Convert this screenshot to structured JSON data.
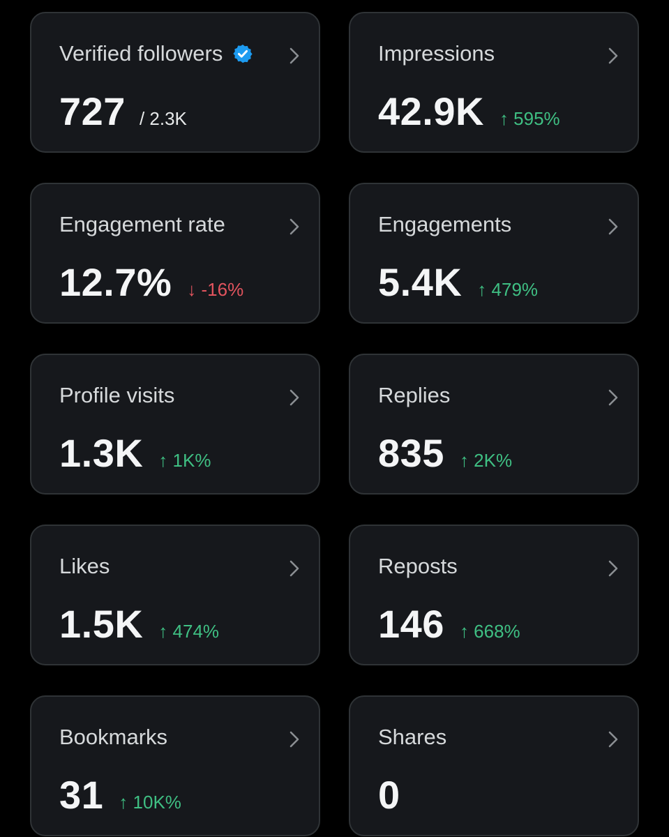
{
  "colors": {
    "background": "#000000",
    "card": "#16181c",
    "card_border": "#2f3336",
    "positive": "#3fbf83",
    "negative": "#e2545e",
    "verified": "#1d9bf0"
  },
  "cards": [
    {
      "title": "Verified followers",
      "value": "727",
      "total": "/ 2.3K",
      "icon": "verified-badge-icon"
    },
    {
      "title": "Impressions",
      "value": "42.9K",
      "change": "↑ 595%",
      "trend": "up"
    },
    {
      "title": "Engagement rate",
      "value": "12.7%",
      "change": "↓ -16%",
      "trend": "down"
    },
    {
      "title": "Engagements",
      "value": "5.4K",
      "change": "↑ 479%",
      "trend": "up"
    },
    {
      "title": "Profile visits",
      "value": "1.3K",
      "change": "↑ 1K%",
      "trend": "up"
    },
    {
      "title": "Replies",
      "value": "835",
      "change": "↑ 2K%",
      "trend": "up"
    },
    {
      "title": "Likes",
      "value": "1.5K",
      "change": "↑ 474%",
      "trend": "up"
    },
    {
      "title": "Reposts",
      "value": "146",
      "change": "↑ 668%",
      "trend": "up"
    },
    {
      "title": "Bookmarks",
      "value": "31",
      "change": "↑ 10K%",
      "trend": "up"
    },
    {
      "title": "Shares",
      "value": "0"
    }
  ]
}
